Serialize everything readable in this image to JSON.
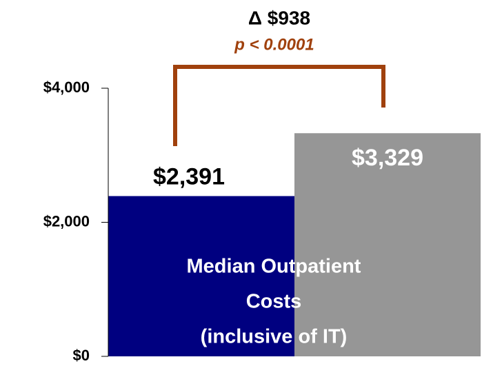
{
  "chart_data": {
    "type": "bar",
    "categories": [
      null,
      null
    ],
    "values": [
      2391,
      3329
    ],
    "value_labels": [
      "$2,391",
      "$3,329"
    ],
    "colors": [
      "#000080",
      "#969696"
    ],
    "ylim": [
      0,
      4000
    ],
    "yticks": [
      {
        "value": 0,
        "label": "$0"
      },
      {
        "value": 2000,
        "label": "$2,000"
      },
      {
        "value": 4000,
        "label": "$4,000"
      }
    ],
    "bracket_color": "#a0410d",
    "annotations": {
      "difference": "Δ $938",
      "significance": "p < 0.0001",
      "bar_text": [
        "Median Outpatient",
        "Costs",
        "(inclusive of IT)"
      ]
    }
  }
}
